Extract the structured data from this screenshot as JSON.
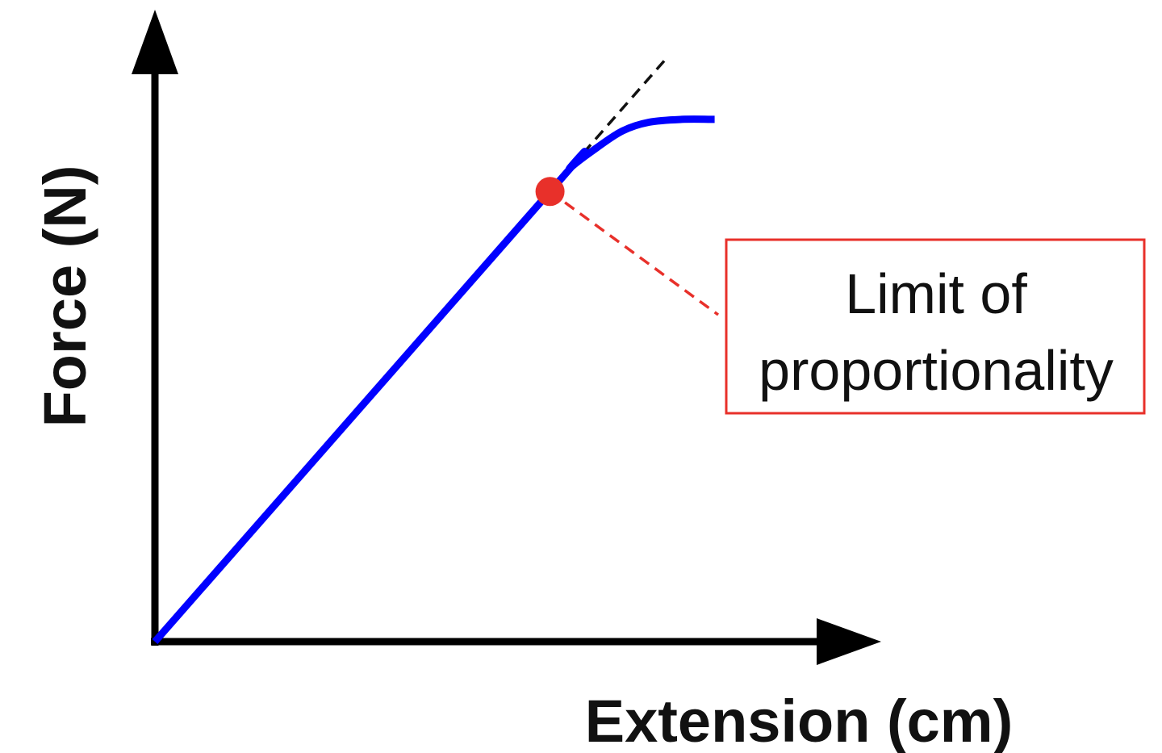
{
  "chart_data": {
    "type": "line",
    "title": "",
    "xlabel": "Extension (cm)",
    "ylabel": "Force (N)",
    "grid": false,
    "legend": "none",
    "xlim": [
      0,
      100
    ],
    "ylim": [
      0,
      100
    ],
    "series": [
      {
        "color": "#0000ff",
        "points": [
          [
            0,
            0
          ],
          [
            60,
            78
          ],
          [
            63,
            82
          ],
          [
            67,
            85.5
          ],
          [
            71,
            88.5
          ],
          [
            75,
            90
          ],
          [
            80,
            90.5
          ],
          [
            85,
            90.5
          ]
        ]
      }
    ],
    "reference_line": {
      "style": "dashed",
      "color": "#111111",
      "points": [
        [
          0,
          0
        ],
        [
          78,
          101.5
        ]
      ]
    },
    "marker": {
      "color": "#e8302a",
      "x": 60,
      "y": 78
    },
    "annotation": {
      "lines": [
        "Limit of",
        "proportionality"
      ],
      "border_color": "#e8302a",
      "leader_color": "#e8302a"
    },
    "axis_color": "#000000"
  }
}
